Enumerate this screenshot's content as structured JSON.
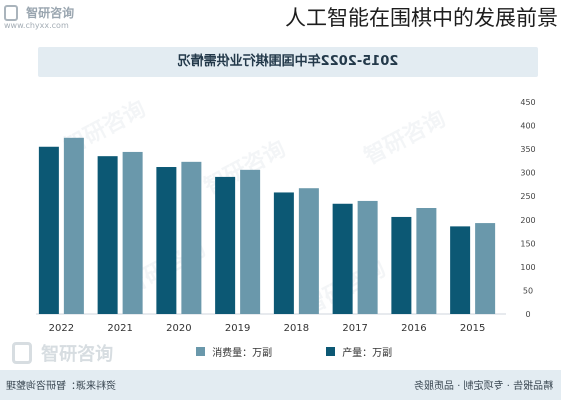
{
  "page_title": "人工智能在围棋中的发展前景",
  "logo": {
    "name": "智研咨询",
    "url": "www.chyxx.com"
  },
  "chart_data": {
    "type": "bar",
    "title": "2015-2022年中国围棋行业供需情况",
    "categories": [
      "2022",
      "2021",
      "2020",
      "2019",
      "2018",
      "2017",
      "2016",
      "2015"
    ],
    "series": [
      {
        "name": "产量：万副",
        "values": [
          355,
          335,
          312,
          291,
          258,
          234,
          206,
          186
        ],
        "color": "#0c5874"
      },
      {
        "name": "消费量：万副",
        "values": [
          374,
          344,
          323,
          306,
          267,
          240,
          225,
          193
        ],
        "color": "#6a98ab"
      }
    ],
    "y_ticks": [
      "0",
      "50",
      "100",
      "150",
      "200",
      "250",
      "300",
      "350",
      "400",
      "450"
    ],
    "ylim": [
      0,
      450
    ],
    "y_axis_side": "right",
    "mirrored": true
  },
  "footer": {
    "source": "资料来源：智研咨询整理",
    "slogan": "精品报告 · 专项定制 · 品质服务"
  },
  "colors": {
    "title_bar": "#e3ecf2",
    "footer_bar": "#e3ecf2",
    "series_1": "#0c5874",
    "series_2": "#6a98ab"
  }
}
